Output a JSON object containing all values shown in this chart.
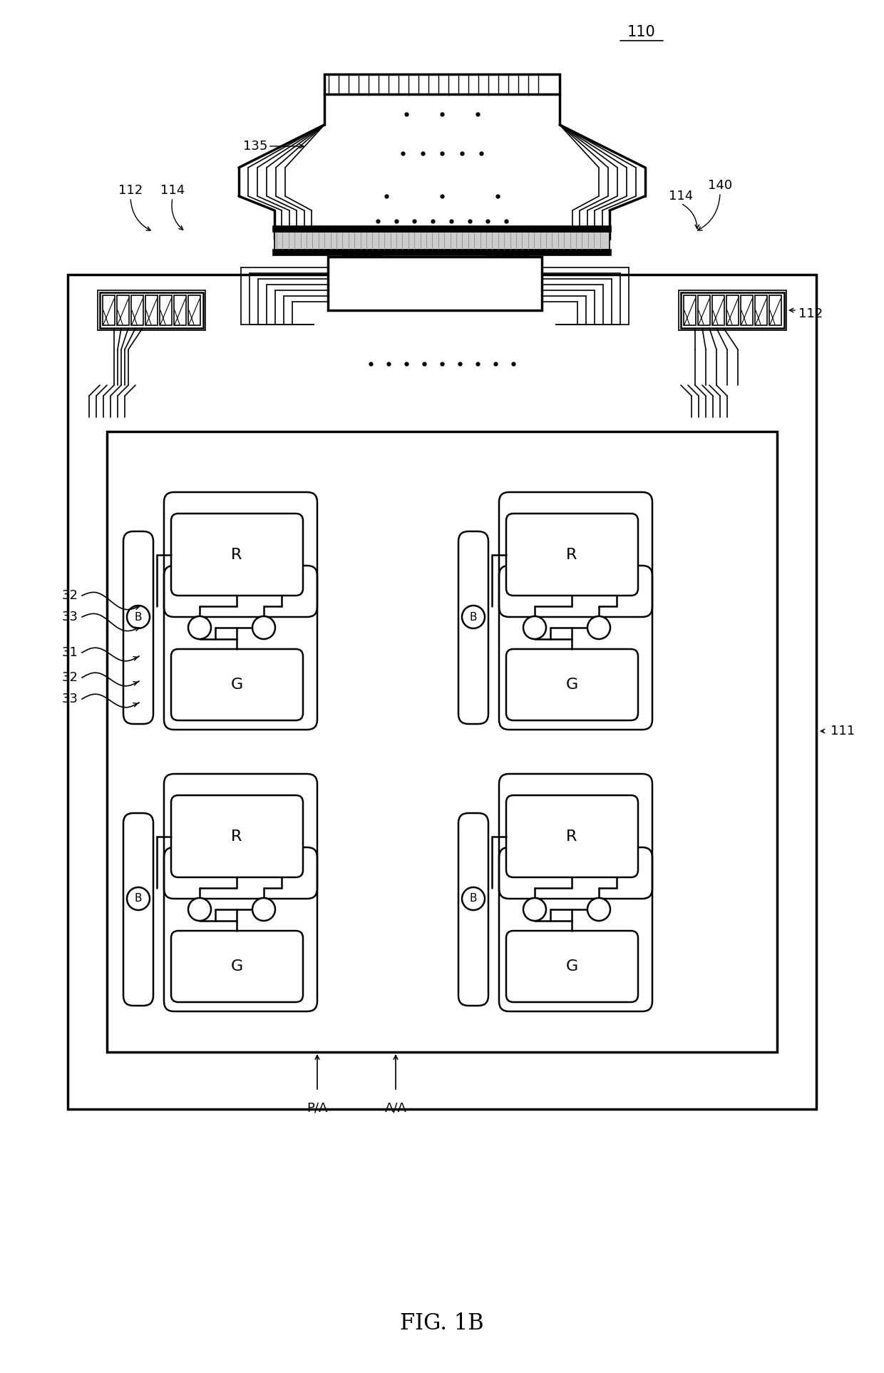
{
  "fig_label": "FIG. 1B",
  "ref_110": "110",
  "ref_111": "111",
  "ref_112": "112",
  "ref_114": "114",
  "ref_135": "135",
  "ref_140": "140",
  "ref_31": "31",
  "ref_32": "32",
  "ref_33": "33",
  "label_PA": "P/A",
  "label_AA": "A/A",
  "bg_color": "#ffffff",
  "line_color": "#000000",
  "gray_fill": "#cccccc"
}
